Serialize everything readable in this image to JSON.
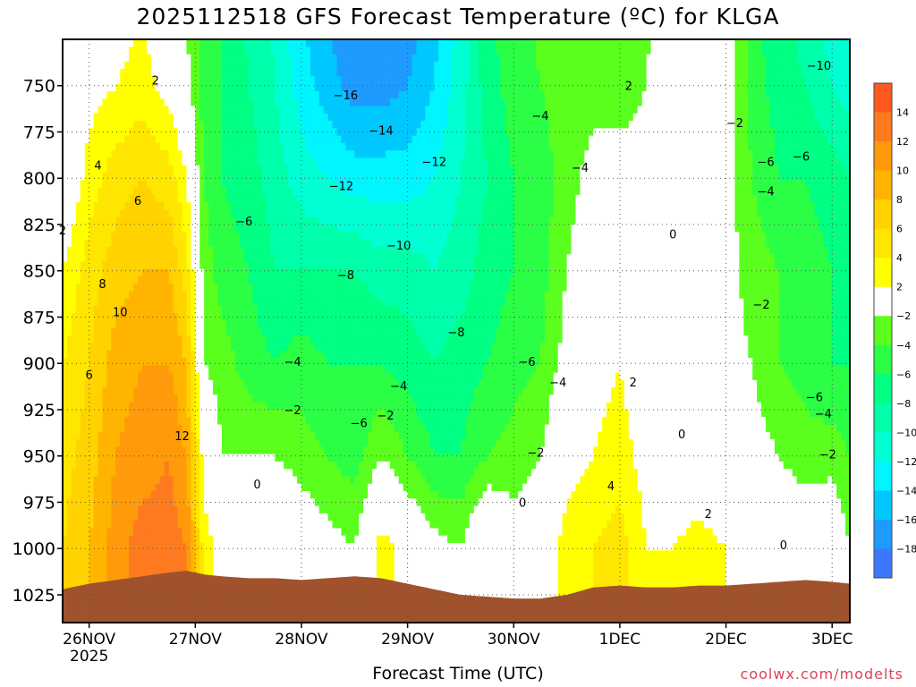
{
  "page": {
    "title": "2025112518 GFS Forecast Temperature (ºC) for KLGA",
    "xlabel": "Forecast Time (UTC)",
    "credit": "coolwx.com/modelts"
  },
  "chart_data": {
    "type": "heatmap",
    "title": "2025112518 GFS Forecast Temperature (ºC) for KLGA",
    "xlabel": "Forecast Time (UTC)",
    "ylabel": "",
    "y_axis": {
      "ticks": [
        750,
        775,
        800,
        825,
        850,
        875,
        900,
        925,
        950,
        975,
        1000,
        1025
      ],
      "range": [
        725,
        1040
      ],
      "inverted": true
    },
    "x_axis": {
      "ticks": [
        {
          "label": "26NOV",
          "sub": "2025",
          "hour": 6
        },
        {
          "label": "27NOV",
          "sub": "",
          "hour": 30
        },
        {
          "label": "28NOV",
          "sub": "",
          "hour": 54
        },
        {
          "label": "29NOV",
          "sub": "",
          "hour": 78
        },
        {
          "label": "30NOV",
          "sub": "",
          "hour": 102
        },
        {
          "label": "1DEC",
          "sub": "",
          "hour": 126
        },
        {
          "label": "2DEC",
          "sub": "",
          "hour": 150
        },
        {
          "label": "3DEC",
          "sub": "",
          "hour": 174
        }
      ],
      "range": [
        0,
        178
      ]
    },
    "colorbar": {
      "labels": [
        "14",
        "12",
        "10",
        "8",
        "6",
        "4",
        "2",
        "−2",
        "−4",
        "−6",
        "−8",
        "−10",
        "−12",
        "−14",
        "−16",
        "−18"
      ],
      "colors": [
        "#ff5a1e",
        "#ff7a1e",
        "#ff9a0a",
        "#ffb400",
        "#ffd200",
        "#ffe600",
        "#ffff00",
        "#ffffff",
        "#5aff1e",
        "#2aff46",
        "#00ff82",
        "#00ffaa",
        "#00ffd2",
        "#00f5ff",
        "#00c8ff",
        "#1e9bff",
        "#3c78ff"
      ]
    },
    "grid": true,
    "columns": [
      {
        "hour": 0,
        "sfc": 1022,
        "t": {
          "750": -1,
          "800": -1,
          "850": 2,
          "900": 4,
          "950": 5,
          "1000": 6
        }
      },
      {
        "hour": 6,
        "sfc": 1019,
        "t": {
          "750": 1,
          "800": 3,
          "850": 5,
          "900": 6,
          "950": 7,
          "1000": 8
        }
      },
      {
        "hour": 12,
        "sfc": 1017,
        "t": {
          "750": 2,
          "800": 5,
          "850": 7,
          "900": 9,
          "950": 10,
          "1000": 11
        }
      },
      {
        "hour": 18,
        "sfc": 1015,
        "t": {
          "750": 3,
          "800": 6,
          "850": 8,
          "900": 10,
          "950": 11,
          "1000": 13
        }
      },
      {
        "hour": 24,
        "sfc": 1013,
        "t": {
          "750": 1,
          "800": 5,
          "850": 8,
          "900": 10,
          "950": 12,
          "1000": 13
        }
      },
      {
        "hour": 28,
        "sfc": 1012,
        "t": {
          "750": -1,
          "800": 2,
          "850": 5,
          "900": 8,
          "950": 10,
          "1000": 12
        }
      },
      {
        "hour": 32,
        "sfc": 1014,
        "t": {
          "750": -5,
          "800": -4,
          "850": -3,
          "900": -2,
          "950": 1,
          "1000": 3
        }
      },
      {
        "hour": 36,
        "sfc": 1015,
        "t": {
          "750": -6,
          "800": -6,
          "850": -5,
          "900": -3,
          "950": -2,
          "1000": 1
        }
      },
      {
        "hour": 42,
        "sfc": 1016,
        "t": {
          "750": -8,
          "800": -7,
          "850": -6,
          "900": -5,
          "950": -2,
          "1000": 1
        }
      },
      {
        "hour": 48,
        "sfc": 1016,
        "t": {
          "750": -10,
          "800": -9,
          "850": -8,
          "900": -6,
          "950": -2,
          "1000": 2
        }
      },
      {
        "hour": 54,
        "sfc": 1017,
        "t": {
          "750": -13,
          "800": -11,
          "850": -8,
          "900": -5,
          "950": -3,
          "1000": 0
        }
      },
      {
        "hour": 60,
        "sfc": 1016,
        "t": {
          "750": -15,
          "800": -12,
          "850": -8,
          "900": -6,
          "950": -4,
          "1000": -1
        }
      },
      {
        "hour": 66,
        "sfc": 1015,
        "t": {
          "750": -17,
          "800": -13,
          "850": -8,
          "900": -6,
          "950": -5,
          "1000": -2
        }
      },
      {
        "hour": 72,
        "sfc": 1016,
        "t": {
          "750": -17,
          "800": -13,
          "850": -9,
          "900": -6,
          "950": -2,
          "1000": 3
        }
      },
      {
        "hour": 78,
        "sfc": 1019,
        "t": {
          "750": -16,
          "800": -13,
          "850": -9,
          "900": -7,
          "950": -4,
          "1000": 1
        }
      },
      {
        "hour": 84,
        "sfc": 1022,
        "t": {
          "750": -14,
          "800": -12,
          "850": -10,
          "900": -8,
          "950": -6,
          "1000": -1
        }
      },
      {
        "hour": 90,
        "sfc": 1025,
        "t": {
          "750": -11,
          "800": -10,
          "850": -9,
          "900": -7,
          "950": -6,
          "1000": -2
        }
      },
      {
        "hour": 96,
        "sfc": 1026,
        "t": {
          "750": -7,
          "800": -8,
          "850": -7,
          "900": -6,
          "950": -4,
          "1000": 2
        }
      },
      {
        "hour": 102,
        "sfc": 1027,
        "t": {
          "750": -5,
          "800": -6,
          "850": -6,
          "900": -5,
          "950": -3,
          "1000": -1
        }
      },
      {
        "hour": 108,
        "sfc": 1027,
        "t": {
          "750": -4,
          "800": -5,
          "850": -5,
          "900": -4,
          "950": -2,
          "1000": 0
        }
      },
      {
        "hour": 114,
        "sfc": 1025,
        "t": {
          "750": -3,
          "800": -3,
          "850": -2,
          "900": -1,
          "950": 1,
          "1000": 3
        }
      },
      {
        "hour": 120,
        "sfc": 1021,
        "t": {
          "750": -3,
          "800": -1,
          "850": 0,
          "900": 1,
          "950": 2,
          "1000": 4
        }
      },
      {
        "hour": 126,
        "sfc": 1020,
        "t": {
          "750": -3,
          "800": -1,
          "850": 0,
          "900": 2,
          "950": 3,
          "1000": 5
        }
      },
      {
        "hour": 132,
        "sfc": 1021,
        "t": {
          "750": -2,
          "800": -1,
          "850": -1,
          "900": 0,
          "950": 1,
          "1000": 2
        }
      },
      {
        "hour": 138,
        "sfc": 1021,
        "t": {
          "750": 0,
          "800": 0,
          "850": -1,
          "900": -1,
          "950": 0,
          "1000": 2
        }
      },
      {
        "hour": 144,
        "sfc": 1020,
        "t": {
          "750": -1,
          "800": 0,
          "850": -1,
          "900": -1,
          "950": 0,
          "1000": 3
        }
      },
      {
        "hour": 150,
        "sfc": 1020,
        "t": {
          "750": 0,
          "800": -1,
          "850": -1,
          "900": -1,
          "950": -1,
          "1000": 2
        }
      },
      {
        "hour": 156,
        "sfc": 1019,
        "t": {
          "750": -5,
          "800": -4,
          "850": -3,
          "900": -2,
          "950": -1,
          "1000": 1
        }
      },
      {
        "hour": 162,
        "sfc": 1018,
        "t": {
          "750": -7,
          "800": -6,
          "850": -4,
          "900": -4,
          "950": -2,
          "1000": 0
        }
      },
      {
        "hour": 168,
        "sfc": 1017,
        "t": {
          "750": -8,
          "800": -6,
          "850": -5,
          "900": -5,
          "950": -3,
          "1000": 0
        }
      },
      {
        "hour": 174,
        "sfc": 1018,
        "t": {
          "750": -10,
          "800": -7,
          "850": -6,
          "900": -6,
          "950": -3,
          "1000": 1
        }
      },
      {
        "hour": 178,
        "sfc": 1019,
        "t": {
          "750": -11,
          "800": -8,
          "850": -7,
          "900": -6,
          "950": -4,
          "1000": -2
        }
      }
    ],
    "contour_labels": [
      {
        "text": "2",
        "hour": 21,
        "p": 747
      },
      {
        "text": "4",
        "hour": 8,
        "p": 793
      },
      {
        "text": "6",
        "hour": 17,
        "p": 812
      },
      {
        "text": "2",
        "hour": 0,
        "p": 828
      },
      {
        "text": "8",
        "hour": 9,
        "p": 857
      },
      {
        "text": "10",
        "hour": 13,
        "p": 872
      },
      {
        "text": "6",
        "hour": 6,
        "p": 906
      },
      {
        "text": "12",
        "hour": 27,
        "p": 939
      },
      {
        "text": "−16",
        "hour": 64,
        "p": 755
      },
      {
        "text": "−14",
        "hour": 72,
        "p": 774
      },
      {
        "text": "−12",
        "hour": 84,
        "p": 791
      },
      {
        "text": "−12",
        "hour": 63,
        "p": 804
      },
      {
        "text": "−6",
        "hour": 41,
        "p": 823
      },
      {
        "text": "−10",
        "hour": 76,
        "p": 836
      },
      {
        "text": "−8",
        "hour": 64,
        "p": 852
      },
      {
        "text": "−8",
        "hour": 89,
        "p": 883
      },
      {
        "text": "−6",
        "hour": 105,
        "p": 899
      },
      {
        "text": "−4",
        "hour": 52,
        "p": 899
      },
      {
        "text": "−4",
        "hour": 76,
        "p": 912
      },
      {
        "text": "−2",
        "hour": 52,
        "p": 925
      },
      {
        "text": "−6",
        "hour": 67,
        "p": 932
      },
      {
        "text": "−2",
        "hour": 73,
        "p": 928
      },
      {
        "text": "−4",
        "hour": 112,
        "p": 910
      },
      {
        "text": "−2",
        "hour": 107,
        "p": 948
      },
      {
        "text": "0",
        "hour": 44,
        "p": 965
      },
      {
        "text": "0",
        "hour": 104,
        "p": 975
      },
      {
        "text": "−4",
        "hour": 108,
        "p": 766
      },
      {
        "text": "−4",
        "hour": 117,
        "p": 794
      },
      {
        "text": "2",
        "hour": 128,
        "p": 750
      },
      {
        "text": "0",
        "hour": 138,
        "p": 830
      },
      {
        "text": "2",
        "hour": 129,
        "p": 910
      },
      {
        "text": "4",
        "hour": 124,
        "p": 966
      },
      {
        "text": "0",
        "hour": 140,
        "p": 938
      },
      {
        "text": "2",
        "hour": 146,
        "p": 981
      },
      {
        "text": "0",
        "hour": 163,
        "p": 998
      },
      {
        "text": "−2",
        "hour": 152,
        "p": 770
      },
      {
        "text": "−6",
        "hour": 159,
        "p": 791
      },
      {
        "text": "−6",
        "hour": 167,
        "p": 788
      },
      {
        "text": "−4",
        "hour": 159,
        "p": 807
      },
      {
        "text": "−2",
        "hour": 158,
        "p": 868
      },
      {
        "text": "−10",
        "hour": 171,
        "p": 739
      },
      {
        "text": "−6",
        "hour": 170,
        "p": 918
      },
      {
        "text": "−4",
        "hour": 172,
        "p": 927
      },
      {
        "text": "−2",
        "hour": 173,
        "p": 949
      }
    ]
  }
}
